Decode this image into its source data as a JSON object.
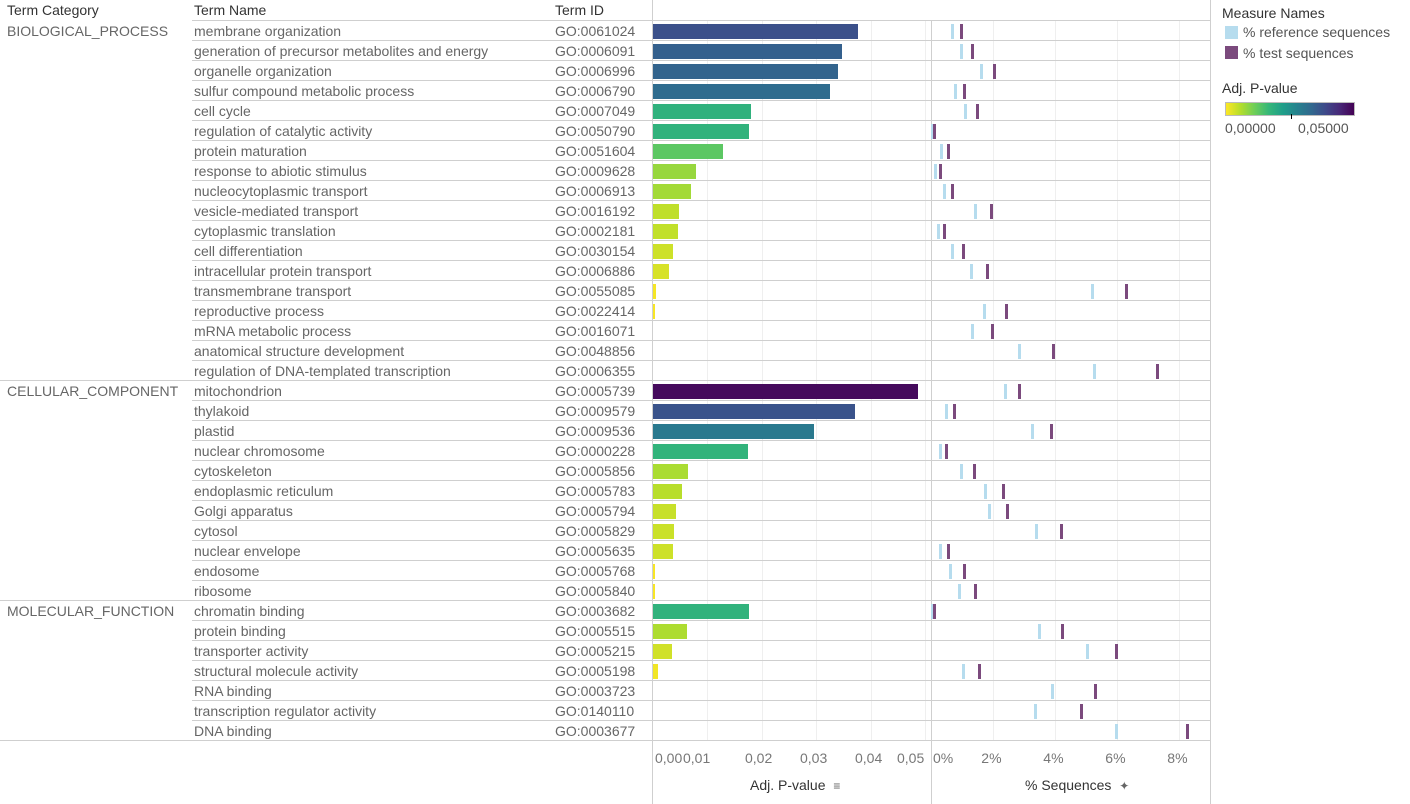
{
  "headers": {
    "category": "Term Category",
    "name": "Term Name",
    "id": "Term ID"
  },
  "legend": {
    "measure_title": "Measure Names",
    "measures": [
      {
        "label": "% reference sequences",
        "color": "#b6dcee"
      },
      {
        "label": "% test sequences",
        "color": "#7b4a7d"
      }
    ],
    "color_title": "Adj. P-value",
    "color_min_label": "0,00000",
    "color_max_label": "0,05000"
  },
  "axes": {
    "pvalue_title": "Adj. P-value",
    "pvalue_sort_icon": "sort-icon",
    "pvalue_ticks": [
      "0,00",
      "0,01",
      "0,02",
      "0,03",
      "0,04",
      "0,05"
    ],
    "seq_title": "% Sequences",
    "seq_pin_icon": "pin-icon",
    "seq_ticks": [
      "0%",
      "2%",
      "4%",
      "6%",
      "8%"
    ]
  },
  "chart_data": {
    "type": "table",
    "description": "GO enrichment: bar chart of adjusted p-value plus dot/tick plot of % reference vs % test sequences per GO term",
    "pvalue_axis": {
      "label": "Adj. P-value",
      "range": [
        0,
        0.051
      ],
      "ticks": [
        0,
        0.01,
        0.02,
        0.03,
        0.04,
        0.05
      ]
    },
    "seq_axis": {
      "label": "% Sequences",
      "range": [
        0,
        8.8
      ],
      "ticks": [
        0,
        2,
        4,
        6,
        8
      ]
    },
    "color_scale": {
      "name": "viridis-reversed",
      "domain": [
        0,
        0.05
      ],
      "label": "Adj. P-value"
    },
    "series": [
      {
        "name": "% reference sequences",
        "color": "#b6dcee"
      },
      {
        "name": "% test sequences",
        "color": "#7b4a7d"
      }
    ],
    "groups": [
      {
        "category": "BIOLOGICAL_PROCESS",
        "rows": [
          {
            "name": "membrane organization",
            "id": "GO:0061024",
            "pvalue": 0.0377,
            "ref": 0.67,
            "test": 0.96
          },
          {
            "name": "generation of precursor metabolites and energy",
            "id": "GO:0006091",
            "pvalue": 0.0347,
            "ref": 0.96,
            "test": 1.31
          },
          {
            "name": "organelle organization",
            "id": "GO:0006996",
            "pvalue": 0.034,
            "ref": 1.6,
            "test": 2.02
          },
          {
            "name": "sulfur compound metabolic process",
            "id": "GO:0006790",
            "pvalue": 0.0325,
            "ref": 0.76,
            "test": 1.05
          },
          {
            "name": "cell cycle",
            "id": "GO:0007049",
            "pvalue": 0.018,
            "ref": 1.09,
            "test": 1.47
          },
          {
            "name": "regulation of catalytic activity",
            "id": "GO:0050790",
            "pvalue": 0.0177,
            "ref": 0.03,
            "test": 0.09
          },
          {
            "name": "protein maturation",
            "id": "GO:0051604",
            "pvalue": 0.0129,
            "ref": 0.31,
            "test": 0.54
          },
          {
            "name": "response to abiotic stimulus",
            "id": "GO:0009628",
            "pvalue": 0.0079,
            "ref": 0.12,
            "test": 0.28
          },
          {
            "name": "nucleocytoplasmic transport",
            "id": "GO:0006913",
            "pvalue": 0.007,
            "ref": 0.41,
            "test": 0.67
          },
          {
            "name": "vesicle-mediated transport",
            "id": "GO:0016192",
            "pvalue": 0.0048,
            "ref": 1.41,
            "test": 1.93
          },
          {
            "name": "cytoplasmic translation",
            "id": "GO:0002181",
            "pvalue": 0.0046,
            "ref": 0.22,
            "test": 0.41
          },
          {
            "name": "cell differentiation",
            "id": "GO:0030154",
            "pvalue": 0.0037,
            "ref": 0.67,
            "test": 1.02
          },
          {
            "name": "intracellular protein transport",
            "id": "GO:0006886",
            "pvalue": 0.0029,
            "ref": 1.28,
            "test": 1.8
          },
          {
            "name": "transmembrane transport",
            "id": "GO:0055085",
            "pvalue": 0.0006,
            "ref": 5.18,
            "test": 6.28
          },
          {
            "name": "reproductive process",
            "id": "GO:0022414",
            "pvalue": 0.0004,
            "ref": 1.7,
            "test": 2.41
          },
          {
            "name": "mRNA metabolic process",
            "id": "GO:0016071",
            "pvalue": 0.0,
            "ref": 1.31,
            "test": 1.96
          },
          {
            "name": "anatomical structure development",
            "id": "GO:0048856",
            "pvalue": 0.0,
            "ref": 2.83,
            "test": 3.93
          },
          {
            "name": "regulation of DNA-templated transcription",
            "id": "GO:0006355",
            "pvalue": 0.0,
            "ref": 5.25,
            "test": 7.28
          }
        ]
      },
      {
        "category": "CELLULAR_COMPONENT",
        "rows": [
          {
            "name": "mitochondrion",
            "id": "GO:0005739",
            "pvalue": 0.0487,
            "ref": 2.38,
            "test": 2.83
          },
          {
            "name": "thylakoid",
            "id": "GO:0009579",
            "pvalue": 0.0371,
            "ref": 0.47,
            "test": 0.73
          },
          {
            "name": "plastid",
            "id": "GO:0009536",
            "pvalue": 0.0296,
            "ref": 3.25,
            "test": 3.86
          },
          {
            "name": "nuclear chromosome",
            "id": "GO:0000228",
            "pvalue": 0.0175,
            "ref": 0.28,
            "test": 0.47
          },
          {
            "name": "cytoskeleton",
            "id": "GO:0005856",
            "pvalue": 0.0064,
            "ref": 0.96,
            "test": 1.38
          },
          {
            "name": "endoplasmic reticulum",
            "id": "GO:0005783",
            "pvalue": 0.0053,
            "ref": 1.73,
            "test": 2.31
          },
          {
            "name": "Golgi apparatus",
            "id": "GO:0005794",
            "pvalue": 0.0042,
            "ref": 1.86,
            "test": 2.44
          },
          {
            "name": "cytosol",
            "id": "GO:0005829",
            "pvalue": 0.0039,
            "ref": 3.38,
            "test": 4.18
          },
          {
            "name": "nuclear envelope",
            "id": "GO:0005635",
            "pvalue": 0.0037,
            "ref": 0.28,
            "test": 0.54
          },
          {
            "name": "endosome",
            "id": "GO:0005768",
            "pvalue": 0.0004,
            "ref": 0.6,
            "test": 1.05
          },
          {
            "name": "ribosome",
            "id": "GO:0005840",
            "pvalue": 0.0004,
            "ref": 0.89,
            "test": 1.41
          }
        ]
      },
      {
        "category": "MOLECULAR_FUNCTION",
        "rows": [
          {
            "name": "chromatin binding",
            "id": "GO:0003682",
            "pvalue": 0.0177,
            "ref": 0.03,
            "test": 0.09
          },
          {
            "name": "protein binding",
            "id": "GO:0005515",
            "pvalue": 0.0062,
            "ref": 3.47,
            "test": 4.22
          },
          {
            "name": "transporter activity",
            "id": "GO:0005215",
            "pvalue": 0.0035,
            "ref": 5.02,
            "test": 5.96
          },
          {
            "name": "structural molecule activity",
            "id": "GO:0005198",
            "pvalue": 0.0009,
            "ref": 1.02,
            "test": 1.54
          },
          {
            "name": "RNA binding",
            "id": "GO:0003723",
            "pvalue": 0.0,
            "ref": 3.89,
            "test": 5.28
          },
          {
            "name": "transcription regulator activity",
            "id": "GO:0140110",
            "pvalue": 0.0,
            "ref": 3.35,
            "test": 4.82
          },
          {
            "name": "DNA binding",
            "id": "GO:0003677",
            "pvalue": 0.0,
            "ref": 5.96,
            "test": 8.25
          }
        ]
      }
    ]
  }
}
